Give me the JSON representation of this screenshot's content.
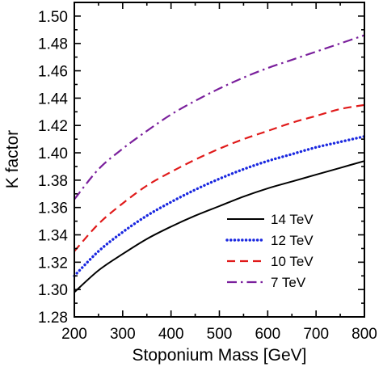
{
  "chart_data": {
    "type": "line",
    "title": "",
    "xlabel": "Stoponium Mass [GeV]",
    "ylabel": "K factor",
    "xlim": [
      200,
      800
    ],
    "ylim": [
      1.28,
      1.51
    ],
    "x_ticks": [
      200,
      300,
      400,
      500,
      600,
      700,
      800
    ],
    "y_ticks": [
      1.28,
      1.3,
      1.32,
      1.34,
      1.36,
      1.38,
      1.4,
      1.42,
      1.44,
      1.46,
      1.48,
      1.5
    ],
    "x_tick_labels": [
      "200",
      "300",
      "400",
      "500",
      "600",
      "700",
      "800"
    ],
    "y_tick_labels": [
      "1.28",
      "1.30",
      "1.32",
      "1.34",
      "1.36",
      "1.38",
      "1.40",
      "1.42",
      "1.44",
      "1.46",
      "1.48",
      "1.50"
    ],
    "grid": false,
    "legend_position": "bottom-right",
    "x": [
      200,
      250,
      300,
      350,
      400,
      450,
      500,
      550,
      600,
      650,
      700,
      750,
      800
    ],
    "series": [
      {
        "name": "14 TeV",
        "color": "#000000",
        "style": "solid",
        "values": [
          1.298,
          1.314,
          1.326,
          1.337,
          1.346,
          1.354,
          1.361,
          1.368,
          1.374,
          1.379,
          1.384,
          1.389,
          1.394
        ]
      },
      {
        "name": "12 TeV",
        "color": "#1a28e0",
        "style": "dotted",
        "values": [
          1.31,
          1.328,
          1.342,
          1.354,
          1.364,
          1.373,
          1.381,
          1.388,
          1.394,
          1.399,
          1.404,
          1.408,
          1.412
        ]
      },
      {
        "name": "10 TeV",
        "color": "#e01a1a",
        "style": "dashed",
        "values": [
          1.328,
          1.348,
          1.363,
          1.376,
          1.386,
          1.395,
          1.403,
          1.41,
          1.416,
          1.422,
          1.427,
          1.432,
          1.435
        ]
      },
      {
        "name": "7 TeV",
        "color": "#7a1f9c",
        "style": "dashdot",
        "values": [
          1.366,
          1.388,
          1.403,
          1.416,
          1.428,
          1.438,
          1.447,
          1.455,
          1.462,
          1.468,
          1.474,
          1.48,
          1.486
        ]
      }
    ]
  }
}
